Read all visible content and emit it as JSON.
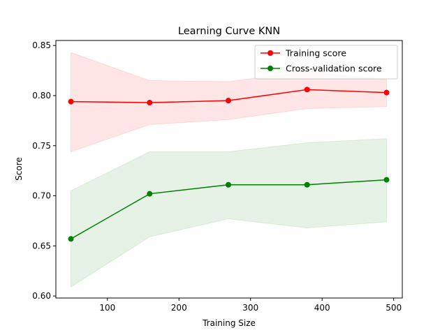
{
  "chart_data": {
    "type": "line",
    "title": "Learning Curve KNN",
    "xlabel": "Training Size",
    "ylabel": "Score",
    "xlim": [
      28,
      512
    ],
    "ylim": [
      0.598,
      0.855
    ],
    "xticks": [
      100,
      200,
      300,
      400,
      500
    ],
    "yticks": [
      0.6,
      0.65,
      0.7,
      0.75,
      0.8,
      0.85
    ],
    "grid": false,
    "legend": "top-right",
    "x": [
      49,
      159,
      269,
      379,
      490
    ],
    "series": [
      {
        "name": "Training score",
        "color": "#ff0000",
        "band_color": "#ff0000",
        "values": [
          0.794,
          0.793,
          0.795,
          0.806,
          0.803
        ],
        "lower": [
          0.744,
          0.771,
          0.776,
          0.787,
          0.789
        ],
        "upper": [
          0.843,
          0.815,
          0.814,
          0.824,
          0.816
        ]
      },
      {
        "name": "Cross-validation score",
        "color": "#008000",
        "band_color": "#008000",
        "values": [
          0.657,
          0.702,
          0.711,
          0.711,
          0.716
        ],
        "lower": [
          0.609,
          0.659,
          0.677,
          0.668,
          0.674
        ],
        "upper": [
          0.705,
          0.744,
          0.744,
          0.753,
          0.757
        ]
      }
    ]
  }
}
